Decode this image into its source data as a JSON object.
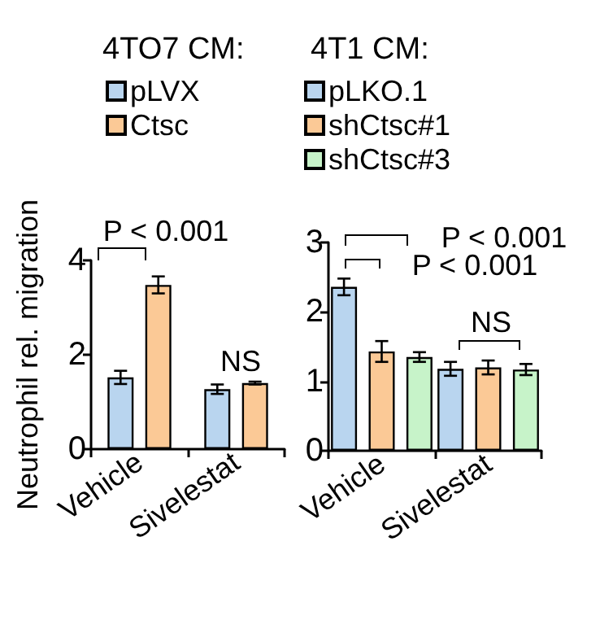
{
  "chart_data": [
    {
      "type": "bar",
      "legend_title": "4TO7 CM:",
      "ylabel": "Neutrophil rel. migration",
      "categories": [
        "Vehicle",
        "Sivelestat"
      ],
      "legend": "top",
      "ylim": [
        0,
        4
      ],
      "yticks": [
        0,
        2,
        4
      ],
      "grid": false,
      "series": [
        {
          "name": "pLVX",
          "color": "#b9d5ef",
          "values": [
            1.52,
            1.27
          ],
          "errors": [
            0.14,
            0.1
          ]
        },
        {
          "name": "Ctsc",
          "color": "#fbc996",
          "values": [
            3.48,
            1.4
          ],
          "errors": [
            0.18,
            0.03
          ]
        }
      ],
      "annotations": [
        "P < 0.001",
        "NS"
      ]
    },
    {
      "type": "bar",
      "legend_title": "4T1 CM:",
      "categories": [
        "Vehicle",
        "Sivelestat"
      ],
      "legend": "top",
      "ylim": [
        0,
        3
      ],
      "yticks": [
        0,
        1,
        2,
        3
      ],
      "grid": false,
      "series": [
        {
          "name": "pLKO.1",
          "color": "#b9d5ef",
          "values": [
            2.36,
            1.18
          ],
          "errors": [
            0.12,
            0.1
          ]
        },
        {
          "name": "shCtsc#1",
          "color": "#fbc996",
          "values": [
            1.43,
            1.2
          ],
          "errors": [
            0.15,
            0.1
          ]
        },
        {
          "name": "shCtsc#3",
          "color": "#c7f3c9",
          "values": [
            1.35,
            1.17
          ],
          "errors": [
            0.07,
            0.08
          ]
        }
      ],
      "annotations": [
        "P < 0.001",
        "P < 0.001",
        "NS"
      ]
    }
  ]
}
